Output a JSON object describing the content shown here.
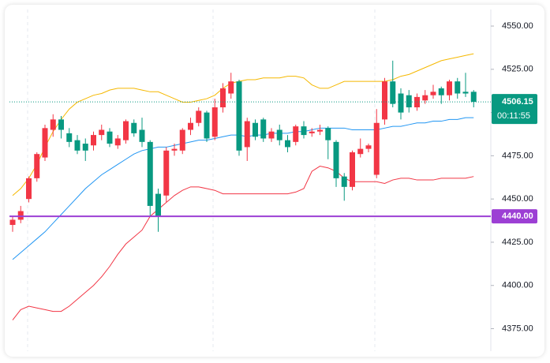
{
  "chart_data": {
    "type": "candlestick",
    "ylim": [
      4362,
      4559.6
    ],
    "yticks": [
      {
        "value": 4375,
        "label": "4375.00"
      },
      {
        "value": 4400,
        "label": "4400.00"
      },
      {
        "value": 4425,
        "label": "4425.00"
      },
      {
        "value": 4450,
        "label": "4450.00"
      },
      {
        "value": 4475,
        "label": "4475.00"
      },
      {
        "value": 4500,
        "label": "4500.00"
      },
      {
        "value": 4525,
        "label": "4525.00"
      },
      {
        "value": 4550,
        "label": "4550.00"
      }
    ],
    "up_color": "#f23645",
    "down_color": "#089981",
    "open": [
      4435,
      4438,
      4450,
      4462,
      4474,
      4490,
      4496,
      4488,
      4484,
      4482,
      4481,
      4487,
      4489,
      4481,
      4484,
      4494,
      4490,
      4483,
      4453,
      4452,
      4478,
      4478,
      4490,
      4494,
      4500,
      4486,
      4503,
      4511,
      4518,
      4480,
      4494,
      4496,
      4485,
      4490,
      4484,
      4483,
      4492,
      4488,
      4489,
      4491,
      4483,
      4463,
      4457,
      4476,
      4479,
      4464,
      4496,
      4518,
      4511,
      4510,
      4503,
      4507,
      4510,
      4514,
      4510,
      4518,
      4512,
      4512
    ],
    "high": [
      4440,
      4446,
      4463,
      4477,
      4493,
      4499,
      4498,
      4491,
      4487,
      4485,
      4489,
      4493,
      4491,
      4487,
      4496,
      4496,
      4497,
      4484,
      4456,
      4480,
      4482,
      4491,
      4497,
      4503,
      4501,
      4508,
      4517,
      4523,
      4519,
      4497,
      4496,
      4497,
      4491,
      4493,
      4487,
      4493,
      4495,
      4491,
      4493,
      4492,
      4484,
      4465,
      4478,
      4485,
      4482,
      4502,
      4520,
      4530,
      4514,
      4513,
      4511,
      4513,
      4516,
      4515,
      4519,
      4520,
      4523,
      4513
    ],
    "low": [
      4431,
      4436,
      4448,
      4460,
      4472,
      4486,
      4485,
      4480,
      4476,
      4472,
      4478,
      4484,
      4480,
      4479,
      4482,
      4486,
      4480,
      4440,
      4431,
      4448,
      4475,
      4476,
      4487,
      4492,
      4483,
      4484,
      4500,
      4508,
      4475,
      4472,
      4484,
      4483,
      4483,
      4481,
      4477,
      4481,
      4485,
      4486,
      4487,
      4473,
      4457,
      4449,
      4455,
      4474,
      4477,
      4462,
      4493,
      4503,
      4496,
      4500,
      4501,
      4505,
      4508,
      4505,
      4507,
      4508,
      4509,
      4503
    ],
    "close": [
      4438,
      4443,
      4462,
      4476,
      4491,
      4496,
      4490,
      4483,
      4478,
      4478,
      4487,
      4490,
      4482,
      4485,
      4495,
      4488,
      4483,
      4446,
      4440,
      4478,
      4479,
      4490,
      4494,
      4501,
      4485,
      4503,
      4514,
      4518,
      4478,
      4495,
      4486,
      4485,
      4489,
      4484,
      4480,
      4492,
      4487,
      4489,
      4490,
      4484,
      4462,
      4457,
      4477,
      4479,
      4481,
      4494,
      4518,
      4505,
      4500,
      4503,
      4509,
      4510,
      4512,
      4510,
      4518,
      4511,
      4511,
      4506.15
    ],
    "bands": [
      {
        "color": "#f5b800",
        "values": [
          4452,
          4456,
          4462,
          4470,
          4480,
          4489,
          4496,
          4502,
          4506,
          4508,
          4510,
          4511,
          4513,
          4514,
          4514,
          4514,
          4513,
          4512,
          4512,
          4510,
          4508,
          4506,
          4506,
          4507,
          4508,
          4510,
          4514,
          4517,
          4518,
          4519,
          4519,
          4520,
          4520,
          4520,
          4521,
          4521,
          4520,
          4516,
          4514,
          4514,
          4516,
          4518,
          4518,
          4518,
          4518,
          4518,
          4518,
          4519,
          4521,
          4522,
          4524,
          4526,
          4528,
          4530,
          4531,
          4532,
          4533,
          4534
        ]
      },
      {
        "color": "#2196f3",
        "values": [
          4415,
          4419,
          4423,
          4427,
          4431,
          4436,
          4441,
          4446,
          4451,
          4456,
          4460,
          4464,
          4467,
          4470,
          4473,
          4476,
          4478,
          4479,
          4480,
          4480,
          4481,
          4482,
          4483,
          4484,
          4484,
          4485,
          4486,
          4487,
          4487,
          4486,
          4487,
          4487,
          4488,
          4488,
          4488,
          4489,
          4489,
          4490,
          4491,
          4491,
          4491,
          4491,
          4490,
          4490,
          4490,
          4490,
          4491,
          4492,
          4492,
          4493,
          4494,
          4494,
          4495,
          4495,
          4496,
          4496,
          4497,
          4497
        ]
      },
      {
        "color": "#f23645",
        "values": [
          4380,
          4386,
          4388,
          4387,
          4386,
          4385,
          4385,
          4388,
          4392,
          4396,
          4400,
          4405,
          4411,
          4418,
          4424,
          4428,
          4432,
          4440,
          4444,
          4448,
          4452,
          4455,
          4457,
          4457,
          4456,
          4455,
          4453,
          4453,
          4453,
          4453,
          4453,
          4453,
          4453,
          4453,
          4453,
          4454,
          4456,
          4466,
          4469,
          4468,
          4466,
          4462,
          4460,
          4460,
          4460,
          4460,
          4459,
          4461,
          4462,
          4462,
          4461,
          4461,
          4461,
          4462,
          4462,
          4462,
          4462,
          4463
        ]
      }
    ],
    "last_price": {
      "value": 4506.15,
      "label": "4506.15",
      "countdown": "00:11:55",
      "color": "#089981"
    },
    "level": {
      "value": 4440,
      "label": "4440.00",
      "color": "#9c3fd4"
    }
  }
}
